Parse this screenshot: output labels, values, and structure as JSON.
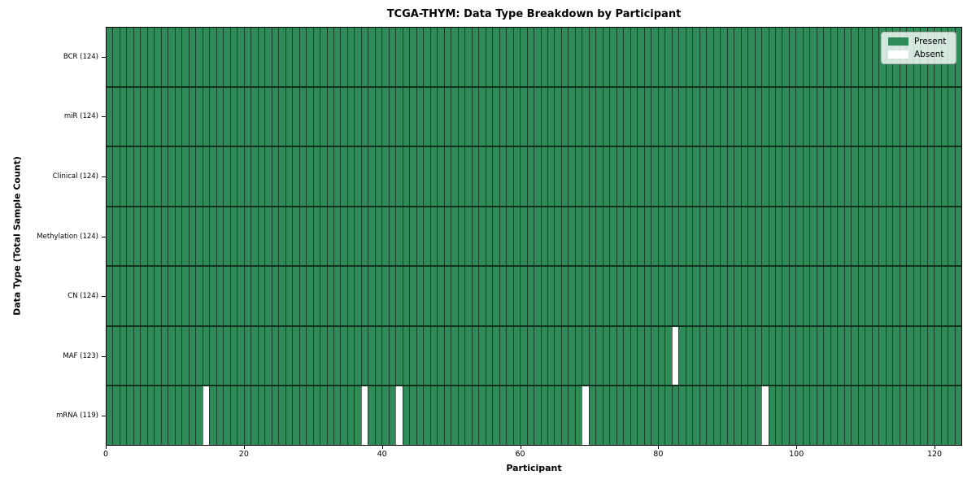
{
  "chart_data": {
    "type": "heatmap",
    "title": "TCGA-THYM: Data Type Breakdown by Participant",
    "xlabel": "Participant",
    "ylabel": "Data Type (Total Sample Count)",
    "n_participants": 124,
    "x_range": [
      0,
      124
    ],
    "x_ticks": [
      0,
      20,
      40,
      60,
      80,
      100,
      120
    ],
    "grid": false,
    "legend_position": "upper-right",
    "rows": [
      {
        "label": "BCR (124)",
        "data_type": "BCR",
        "present_count": 124,
        "absent_participants": []
      },
      {
        "label": "miR (124)",
        "data_type": "miR",
        "present_count": 124,
        "absent_participants": []
      },
      {
        "label": "Clinical (124)",
        "data_type": "Clinical",
        "present_count": 124,
        "absent_participants": []
      },
      {
        "label": "Methylation (124)",
        "data_type": "Methylation",
        "present_count": 124,
        "absent_participants": []
      },
      {
        "label": "CN (124)",
        "data_type": "CN",
        "present_count": 124,
        "absent_participants": []
      },
      {
        "label": "MAF (123)",
        "data_type": "MAF",
        "present_count": 123,
        "absent_participants": [
          82
        ]
      },
      {
        "label": "mRNA (119)",
        "data_type": "mRNA",
        "present_count": 119,
        "absent_participants": [
          14,
          37,
          42,
          69,
          95
        ]
      }
    ],
    "legend": [
      {
        "label": "Present",
        "color": "#2e8b57"
      },
      {
        "label": "Absent",
        "color": "#ffffff"
      }
    ],
    "colors": {
      "present": "#2e8b57",
      "absent": "#ffffff",
      "cell_edge": "rgba(0,0,0,0.55)",
      "row_divider": "rgba(0,0,0,0.65)",
      "axes_spine": "#000000",
      "legend_bg": "rgba(255,255,255,0.8)",
      "legend_border": "#b7b7b7",
      "tick_color": "#000000"
    }
  }
}
